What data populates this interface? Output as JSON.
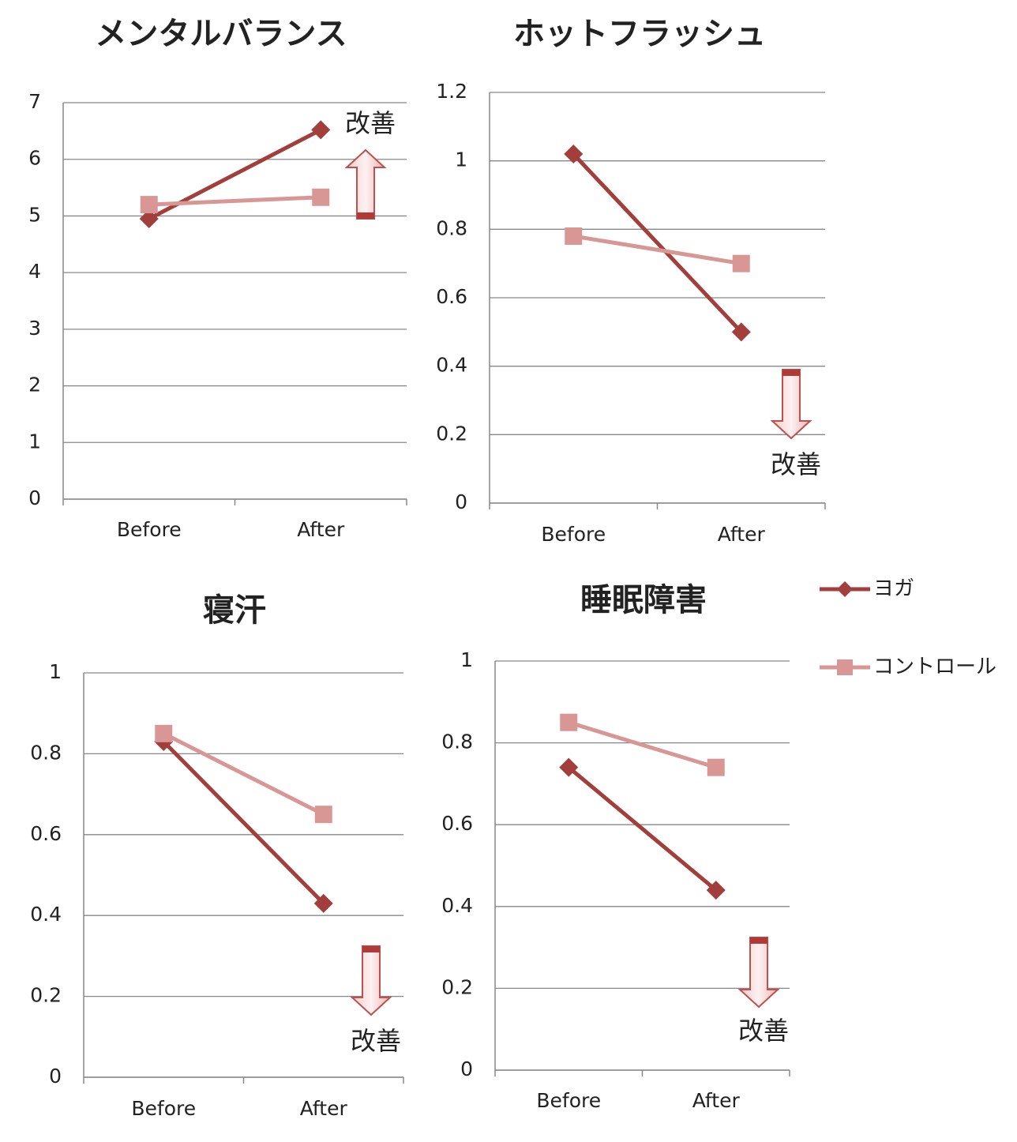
{
  "legend": {
    "position": "right",
    "items": [
      {
        "name": "ヨガ",
        "color": "#a23f3c",
        "marker": "diamond"
      },
      {
        "name": "コントロール",
        "color": "#d89795",
        "marker": "square"
      }
    ]
  },
  "chart_data": [
    {
      "type": "line",
      "title": "メンタルバランス",
      "categories": [
        "Before",
        "After"
      ],
      "series": [
        {
          "values": [
            4.95,
            6.52
          ]
        },
        {
          "values": [
            5.2,
            5.33
          ]
        }
      ],
      "ylim": [
        0,
        7
      ],
      "yticks": [
        0,
        1,
        2,
        3,
        4,
        5,
        6,
        7
      ],
      "grid": true,
      "annotation": {
        "text": "改善",
        "direction": "up"
      }
    },
    {
      "type": "line",
      "title": "ホットフラッシュ",
      "categories": [
        "Before",
        "After"
      ],
      "series": [
        {
          "values": [
            1.02,
            0.5
          ]
        },
        {
          "values": [
            0.78,
            0.7
          ]
        }
      ],
      "ylim": [
        0,
        1.2
      ],
      "yticks": [
        0,
        0.2,
        0.4,
        0.6,
        0.8,
        1,
        1.2
      ],
      "grid": true,
      "annotation": {
        "text": "改善",
        "direction": "down"
      }
    },
    {
      "type": "line",
      "title": "寝汗",
      "categories": [
        "Before",
        "After"
      ],
      "series": [
        {
          "values": [
            0.83,
            0.43
          ]
        },
        {
          "values": [
            0.85,
            0.65
          ]
        }
      ],
      "ylim": [
        0,
        1
      ],
      "yticks": [
        0,
        0.2,
        0.4,
        0.6,
        0.8,
        1
      ],
      "grid": true,
      "annotation": {
        "text": "改善",
        "direction": "down"
      }
    },
    {
      "type": "line",
      "title": "睡眠障害",
      "categories": [
        "Before",
        "After"
      ],
      "series": [
        {
          "values": [
            0.74,
            0.44
          ]
        },
        {
          "values": [
            0.85,
            0.74
          ]
        }
      ],
      "ylim": [
        0,
        1
      ],
      "yticks": [
        0,
        0.2,
        0.4,
        0.6,
        0.8,
        1
      ],
      "grid": true,
      "annotation": {
        "text": "改善",
        "direction": "down"
      }
    }
  ]
}
